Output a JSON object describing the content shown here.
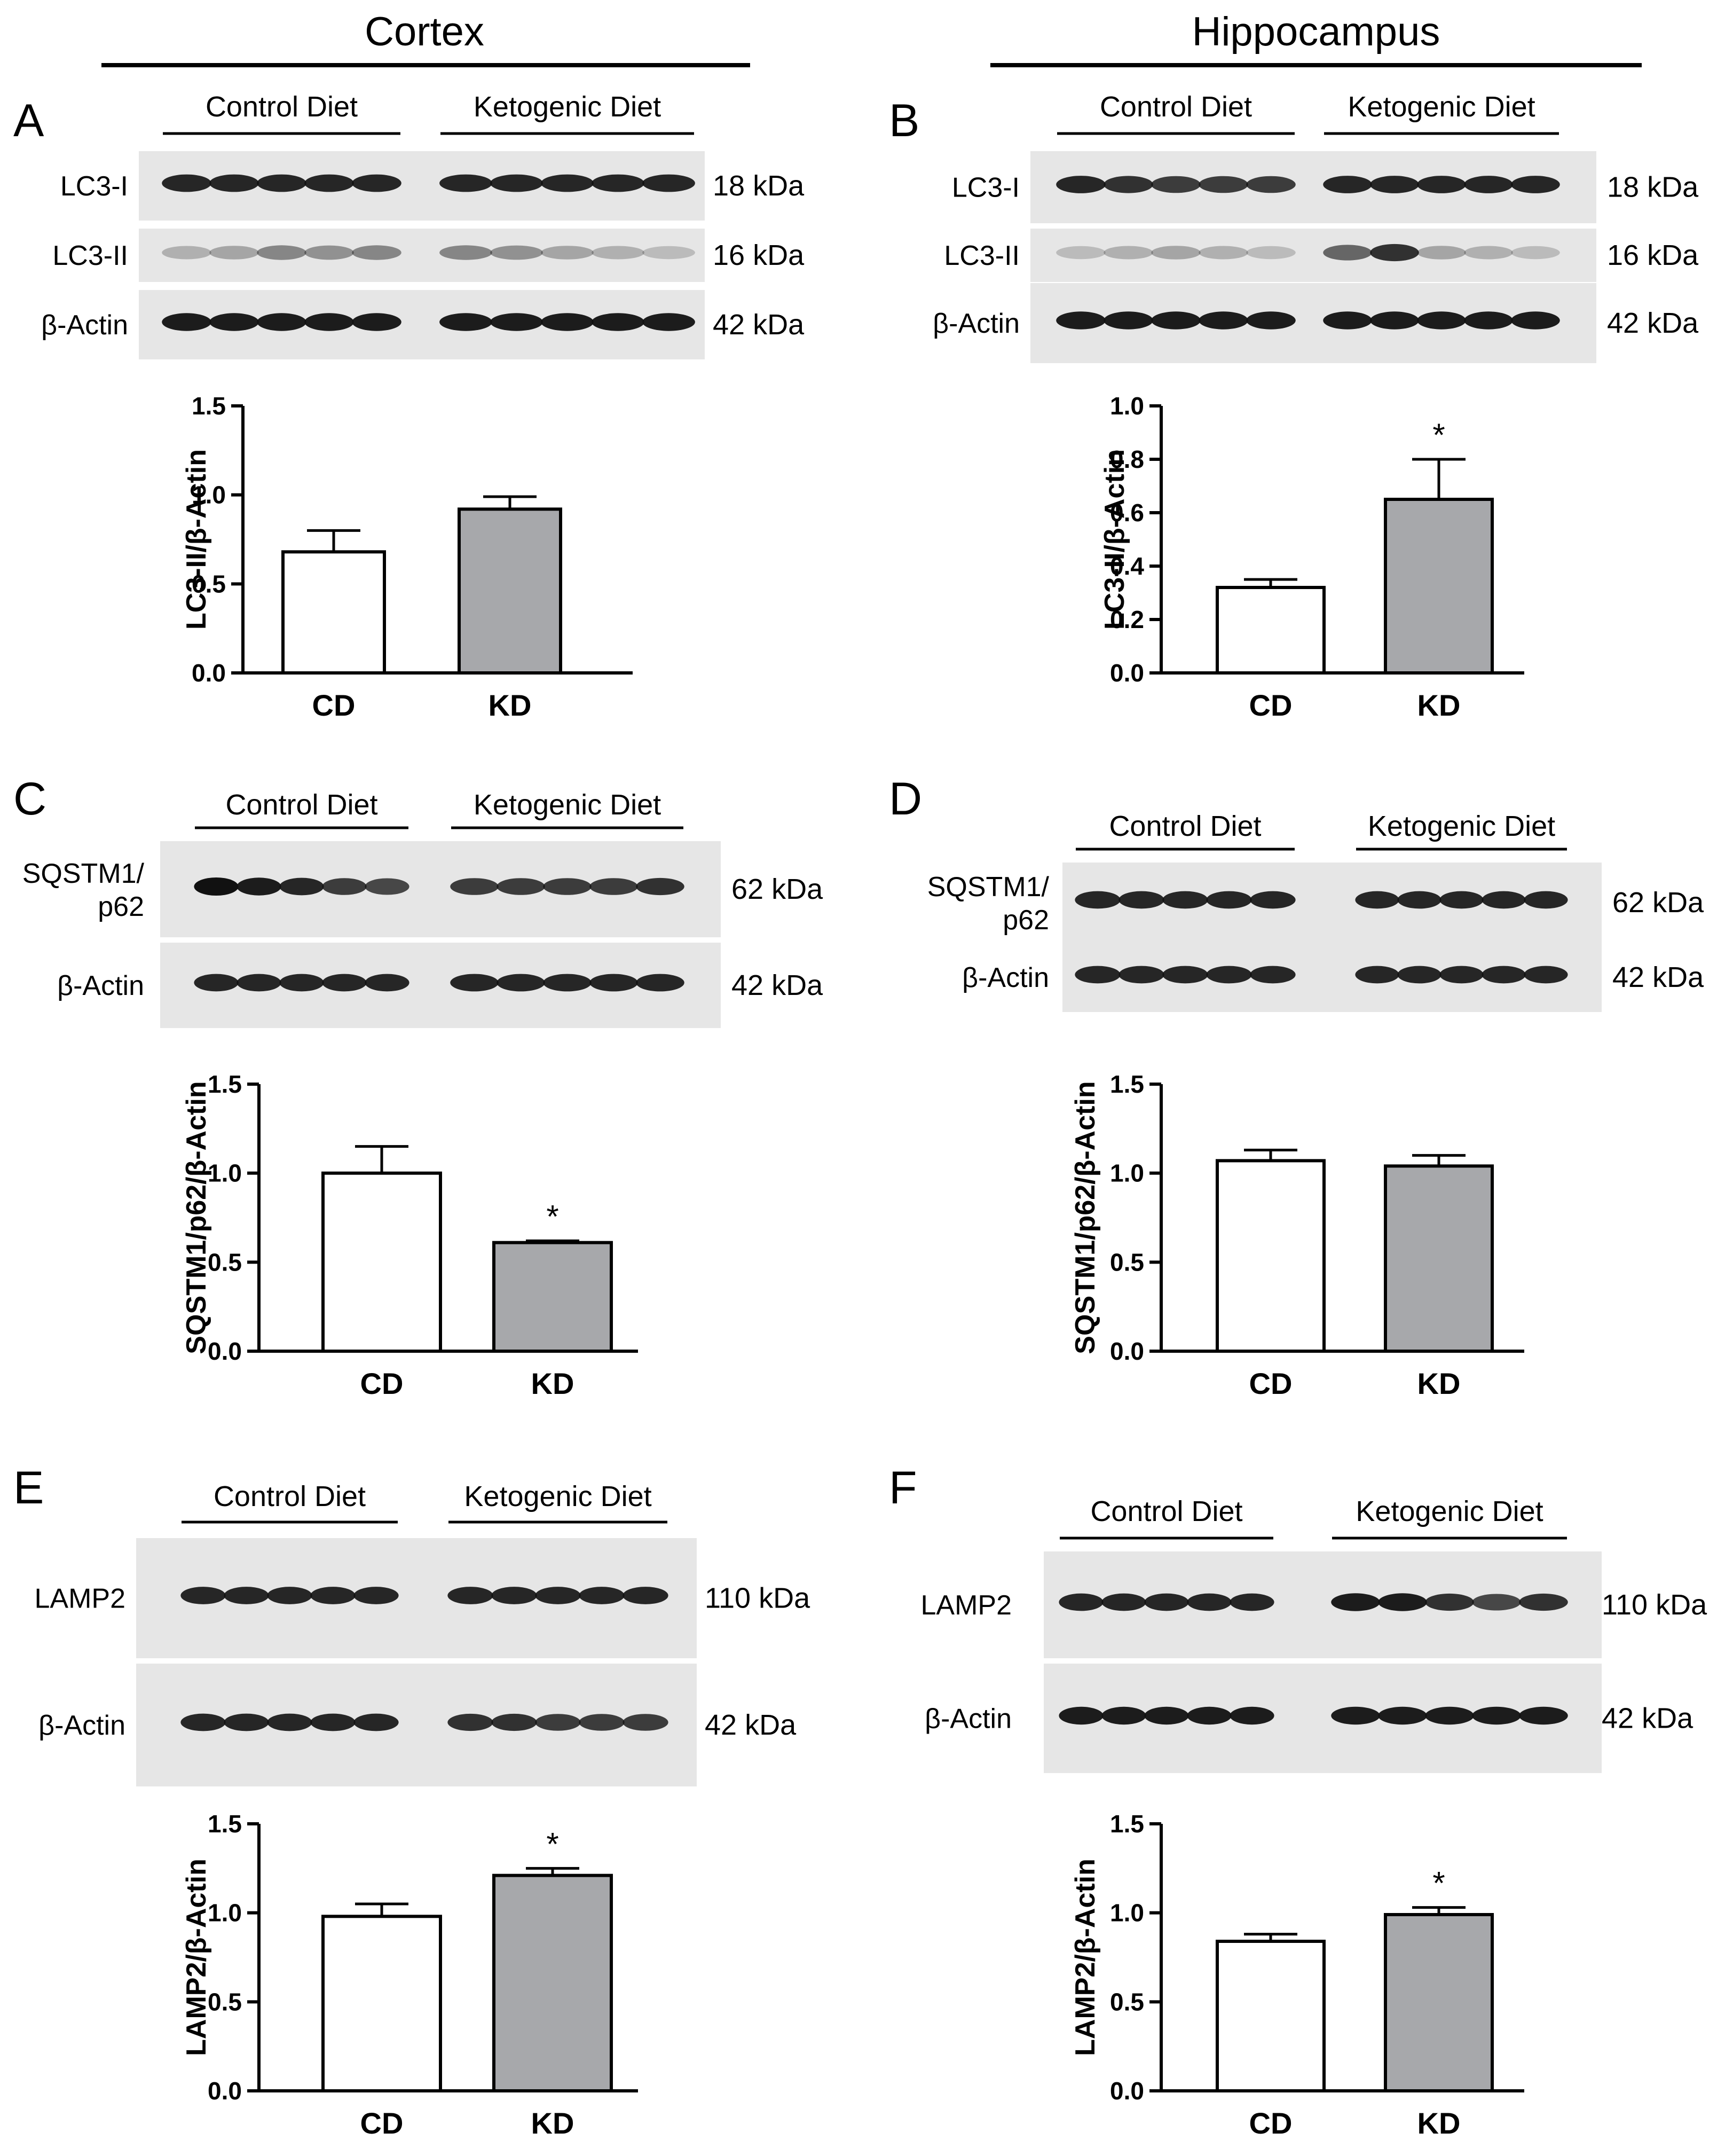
{
  "regions": [
    {
      "title": "Cortex"
    },
    {
      "title": "Hippocampus"
    }
  ],
  "groups": [
    "Control Diet",
    "Ketogenic Diet"
  ],
  "panels": [
    {
      "letter": "A",
      "region": "Cortex",
      "blots": [
        {
          "protein": "LC3-I",
          "kda": "18 kDa",
          "intensity": [
            0.9,
            0.9,
            0.9,
            0.9,
            0.9,
            0.9,
            0.9,
            0.9,
            0.9,
            0.9
          ]
        },
        {
          "protein": "LC3-II",
          "kda": "16 kDa",
          "intensity": [
            0.25,
            0.3,
            0.45,
            0.4,
            0.45,
            0.45,
            0.4,
            0.3,
            0.25,
            0.2
          ]
        },
        {
          "protein": "β-Actin",
          "kda": "42 kDa",
          "intensity": [
            0.95,
            0.95,
            0.95,
            0.95,
            0.95,
            0.95,
            0.95,
            0.95,
            0.95,
            0.95
          ]
        }
      ]
    },
    {
      "letter": "B",
      "region": "Hippocampus",
      "blots": [
        {
          "protein": "LC3-I",
          "kda": "18 kDa",
          "intensity": [
            0.9,
            0.85,
            0.8,
            0.8,
            0.8,
            0.9,
            0.9,
            0.9,
            0.9,
            0.9
          ]
        },
        {
          "protein": "LC3-II",
          "kda": "16 kDa",
          "intensity": [
            0.2,
            0.25,
            0.3,
            0.25,
            0.2,
            0.6,
            0.85,
            0.3,
            0.25,
            0.2
          ]
        },
        {
          "protein": "β-Actin",
          "kda": "42 kDa",
          "intensity": [
            0.95,
            0.95,
            0.95,
            0.95,
            0.95,
            0.95,
            0.95,
            0.95,
            0.95,
            0.95
          ]
        }
      ]
    },
    {
      "letter": "C",
      "region": "Cortex",
      "blots": [
        {
          "protein": "SQSTM1/ p62",
          "kda": "62 kDa",
          "intensity": [
            1.0,
            0.95,
            0.9,
            0.8,
            0.75,
            0.8,
            0.8,
            0.8,
            0.8,
            0.85
          ]
        },
        {
          "protein": "β-Actin",
          "kda": "42 kDa",
          "intensity": [
            0.9,
            0.9,
            0.9,
            0.9,
            0.9,
            0.9,
            0.9,
            0.9,
            0.9,
            0.9
          ]
        }
      ]
    },
    {
      "letter": "D",
      "region": "Hippocampus",
      "blots": [
        {
          "protein": "SQSTM1/ p62",
          "kda": "62 kDa",
          "intensity": [
            0.9,
            0.9,
            0.9,
            0.9,
            0.9,
            0.9,
            0.9,
            0.9,
            0.9,
            0.9
          ]
        },
        {
          "protein": "β-Actin",
          "kda": "42 kDa",
          "intensity": [
            0.9,
            0.9,
            0.9,
            0.9,
            0.9,
            0.9,
            0.9,
            0.9,
            0.9,
            0.9
          ]
        }
      ]
    },
    {
      "letter": "E",
      "region": "Cortex",
      "blots": [
        {
          "protein": "LAMP2",
          "kda": "110 kDa",
          "intensity": [
            0.9,
            0.9,
            0.9,
            0.9,
            0.9,
            0.9,
            0.9,
            0.9,
            0.9,
            0.9
          ]
        },
        {
          "protein": "β-Actin",
          "kda": "42 kDa",
          "intensity": [
            0.9,
            0.9,
            0.9,
            0.9,
            0.9,
            0.85,
            0.85,
            0.8,
            0.8,
            0.8
          ]
        }
      ]
    },
    {
      "letter": "F",
      "region": "Hippocampus",
      "blots": [
        {
          "protein": "LAMP2",
          "kda": "110 kDa",
          "intensity": [
            0.9,
            0.9,
            0.9,
            0.9,
            0.9,
            0.95,
            0.95,
            0.85,
            0.75,
            0.85
          ]
        },
        {
          "protein": "β-Actin",
          "kda": "42 kDa",
          "intensity": [
            0.95,
            0.95,
            0.95,
            0.95,
            0.95,
            0.95,
            0.95,
            0.95,
            0.95,
            0.95
          ]
        }
      ]
    }
  ],
  "chart_data": [
    {
      "panel": "A",
      "type": "bar",
      "categories": [
        "CD",
        "KD"
      ],
      "values": [
        0.68,
        0.92
      ],
      "errors": [
        0.12,
        0.07
      ],
      "ylabel": "LC3-II/β-Actin",
      "ylim": [
        0,
        1.5
      ],
      "yticks": [
        "0.0",
        "0.5",
        "1.0",
        "1.5"
      ],
      "significance": [
        "",
        ""
      ]
    },
    {
      "panel": "B",
      "type": "bar",
      "categories": [
        "CD",
        "KD"
      ],
      "values": [
        0.32,
        0.65
      ],
      "errors": [
        0.03,
        0.15
      ],
      "ylabel": "LC3-II/β-Actin",
      "ylim": [
        0,
        1.0
      ],
      "yticks": [
        "0.0",
        "0.2",
        "0.4",
        "0.6",
        "0.8",
        "1.0"
      ],
      "significance": [
        "",
        "*"
      ]
    },
    {
      "panel": "C",
      "type": "bar",
      "categories": [
        "CD",
        "KD"
      ],
      "values": [
        1.0,
        0.61
      ],
      "errors": [
        0.15,
        0.01
      ],
      "ylabel": "SQSTM1/p62/β-Actin",
      "ylim": [
        0,
        1.5
      ],
      "yticks": [
        "0.0",
        "0.5",
        "1.0",
        "1.5"
      ],
      "significance": [
        "",
        "*"
      ]
    },
    {
      "panel": "D",
      "type": "bar",
      "categories": [
        "CD",
        "KD"
      ],
      "values": [
        1.07,
        1.04
      ],
      "errors": [
        0.06,
        0.06
      ],
      "ylabel": "SQSTM1/p62/β-Actin",
      "ylim": [
        0,
        1.5
      ],
      "yticks": [
        "0.0",
        "0.5",
        "1.0",
        "1.5"
      ],
      "significance": [
        "",
        ""
      ]
    },
    {
      "panel": "E",
      "type": "bar",
      "categories": [
        "CD",
        "KD"
      ],
      "values": [
        0.98,
        1.21
      ],
      "errors": [
        0.07,
        0.04
      ],
      "ylabel": "LAMP2/β-Actin",
      "ylim": [
        0,
        1.5
      ],
      "yticks": [
        "0.0",
        "0.5",
        "1.0",
        "1.5"
      ],
      "significance": [
        "",
        "*"
      ]
    },
    {
      "panel": "F",
      "type": "bar",
      "categories": [
        "CD",
        "KD"
      ],
      "values": [
        0.84,
        0.99
      ],
      "errors": [
        0.04,
        0.04
      ],
      "ylabel": "LAMP2/β-Actin",
      "ylim": [
        0,
        1.5
      ],
      "yticks": [
        "0.0",
        "0.5",
        "1.0",
        "1.5"
      ],
      "significance": [
        "",
        "*"
      ]
    }
  ],
  "colors": {
    "cd_bar": "#ffffff",
    "kd_bar": "#a7a8ab",
    "blot_bg": "#e6e6e6",
    "band": "#111111"
  }
}
